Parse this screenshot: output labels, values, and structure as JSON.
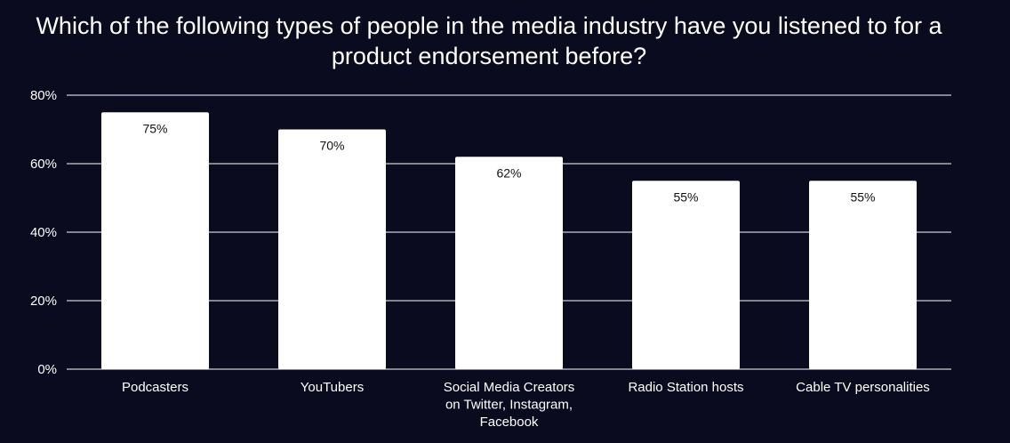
{
  "chart_data": {
    "type": "bar",
    "title": "Which of the following types of people in the media industry have you listened to for a product endorsement before?",
    "categories": [
      [
        "Podcasters"
      ],
      [
        "YouTubers"
      ],
      [
        "Social Media Creators",
        "on Twitter, Instagram,",
        "Facebook"
      ],
      [
        "Radio Station hosts"
      ],
      [
        "Cable TV personalities"
      ]
    ],
    "values": [
      75,
      70,
      62,
      55,
      55
    ],
    "data_labels": [
      "75%",
      "70%",
      "62%",
      "55%",
      "55%"
    ],
    "ylim": [
      0,
      80
    ],
    "yticks": [
      0,
      20,
      40,
      60,
      80
    ],
    "ytick_labels": [
      "0%",
      "20%",
      "40%",
      "60%",
      "80%"
    ],
    "grid": true,
    "xlabel": "",
    "ylabel": "",
    "colors": {
      "background": "#0b0b1f",
      "bar": "#ffffff",
      "grid": "#ffffff",
      "text": "#ffffff",
      "data_label": "#111111"
    }
  }
}
